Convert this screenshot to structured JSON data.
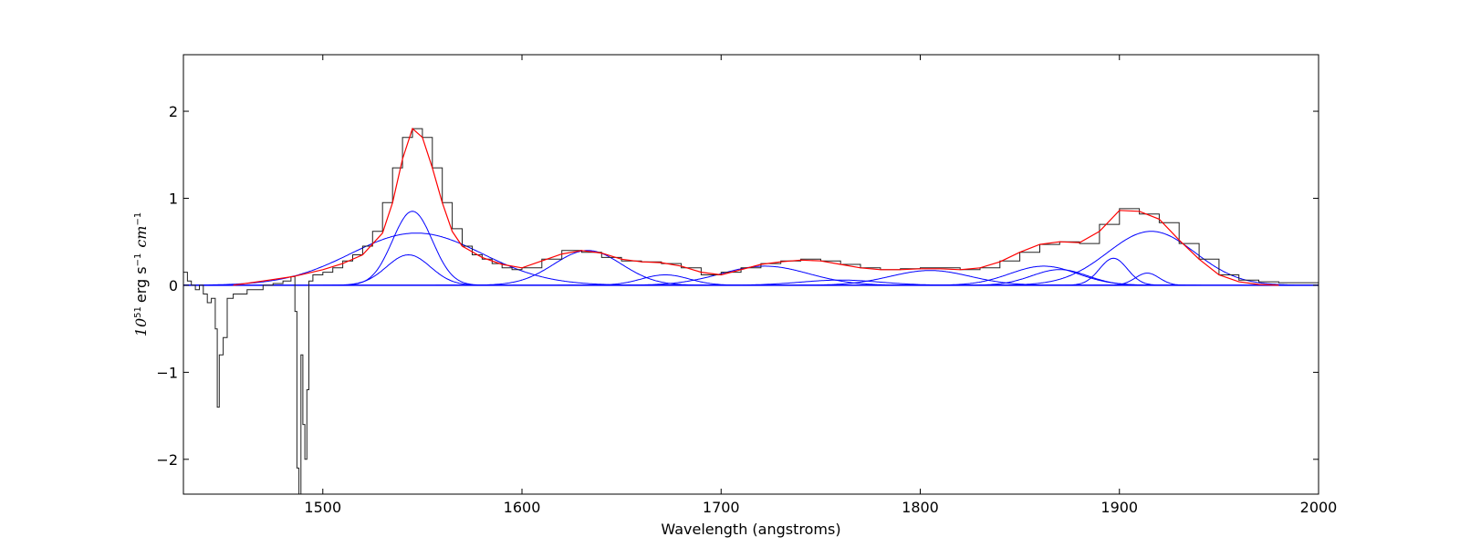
{
  "chart_data": {
    "type": "line",
    "title": "",
    "xlabel": "Wavelength (angstroms)",
    "ylabel": {
      "power": "10",
      "power_exp": "51",
      "unit": "erg s",
      "unit_exp": "−1",
      "math": "cm",
      "math_exp": "−1"
    },
    "xlim": [
      1430,
      2000
    ],
    "ylim": [
      -2.4,
      2.65
    ],
    "xticks": [
      {
        "value": 1500,
        "label": "1500"
      },
      {
        "value": 1600,
        "label": "1600"
      },
      {
        "value": 1700,
        "label": "1700"
      },
      {
        "value": 1800,
        "label": "1800"
      },
      {
        "value": 1900,
        "label": "1900"
      },
      {
        "value": 2000,
        "label": "2000"
      }
    ],
    "yticks": [
      {
        "value": 2,
        "label": "2"
      },
      {
        "value": 1,
        "label": "1"
      },
      {
        "value": 0,
        "label": "0"
      },
      {
        "value": -1,
        "label": "−1"
      },
      {
        "value": -2,
        "label": "−2"
      }
    ],
    "grid": false,
    "legend": "none",
    "colors": {
      "spectrum": "#222222",
      "total_fit": "#ff0000",
      "components": "#0000ff"
    },
    "series": [
      {
        "role": "observed-spectrum",
        "color": "#222222",
        "x": [
          1430,
          1432,
          1434,
          1436,
          1438,
          1440,
          1442,
          1444,
          1446,
          1447,
          1448,
          1450,
          1452,
          1455,
          1458,
          1462,
          1466,
          1470,
          1475,
          1480,
          1484,
          1486,
          1487,
          1488,
          1489,
          1490,
          1491,
          1492,
          1493,
          1495,
          1500,
          1505,
          1510,
          1515,
          1520,
          1525,
          1530,
          1535,
          1540,
          1545,
          1550,
          1555,
          1560,
          1565,
          1570,
          1575,
          1580,
          1585,
          1590,
          1595,
          1600,
          1610,
          1620,
          1630,
          1640,
          1650,
          1660,
          1670,
          1680,
          1690,
          1700,
          1710,
          1720,
          1730,
          1740,
          1750,
          1760,
          1770,
          1780,
          1790,
          1800,
          1810,
          1820,
          1830,
          1840,
          1850,
          1860,
          1870,
          1880,
          1890,
          1900,
          1910,
          1920,
          1930,
          1940,
          1950,
          1960,
          1970,
          1980,
          1990,
          2000
        ],
        "y": [
          0.15,
          0.05,
          0.0,
          -0.05,
          0.0,
          -0.1,
          -0.2,
          -0.15,
          -0.5,
          -1.4,
          -0.8,
          -0.6,
          -0.15,
          -0.1,
          -0.1,
          -0.05,
          -0.05,
          0.0,
          0.02,
          0.05,
          0.1,
          -0.3,
          -2.1,
          -2.4,
          -0.8,
          -1.6,
          -2.0,
          -1.2,
          0.05,
          0.12,
          0.15,
          0.2,
          0.28,
          0.35,
          0.45,
          0.62,
          0.95,
          1.35,
          1.7,
          1.8,
          1.7,
          1.35,
          0.95,
          0.65,
          0.45,
          0.35,
          0.3,
          0.25,
          0.2,
          0.18,
          0.2,
          0.3,
          0.4,
          0.38,
          0.32,
          0.28,
          0.27,
          0.25,
          0.2,
          0.12,
          0.15,
          0.2,
          0.25,
          0.28,
          0.3,
          0.28,
          0.24,
          0.2,
          0.18,
          0.19,
          0.2,
          0.2,
          0.18,
          0.2,
          0.28,
          0.38,
          0.47,
          0.5,
          0.48,
          0.7,
          0.88,
          0.82,
          0.72,
          0.48,
          0.3,
          0.12,
          0.06,
          0.04,
          0.03,
          0.03,
          0.05
        ]
      },
      {
        "role": "total-fit",
        "color": "#ff0000",
        "x": [
          1455,
          1470,
          1485,
          1500,
          1510,
          1520,
          1530,
          1535,
          1540,
          1545,
          1550,
          1555,
          1560,
          1565,
          1570,
          1580,
          1590,
          1600,
          1610,
          1620,
          1630,
          1640,
          1650,
          1660,
          1670,
          1680,
          1690,
          1700,
          1710,
          1720,
          1730,
          1740,
          1750,
          1760,
          1770,
          1780,
          1790,
          1800,
          1810,
          1820,
          1830,
          1840,
          1850,
          1860,
          1870,
          1880,
          1890,
          1900,
          1910,
          1920,
          1930,
          1940,
          1950,
          1960,
          1970,
          1980
        ],
        "y": [
          0.0,
          0.05,
          0.1,
          0.18,
          0.25,
          0.35,
          0.6,
          0.95,
          1.45,
          1.8,
          1.7,
          1.35,
          0.95,
          0.62,
          0.45,
          0.32,
          0.24,
          0.2,
          0.28,
          0.36,
          0.4,
          0.37,
          0.3,
          0.27,
          0.26,
          0.22,
          0.15,
          0.12,
          0.18,
          0.24,
          0.27,
          0.29,
          0.28,
          0.24,
          0.2,
          0.18,
          0.18,
          0.19,
          0.19,
          0.18,
          0.2,
          0.27,
          0.38,
          0.47,
          0.5,
          0.49,
          0.62,
          0.86,
          0.85,
          0.76,
          0.52,
          0.3,
          0.12,
          0.04,
          0.01,
          0.0
        ]
      }
    ],
    "components": [
      {
        "center": 1545,
        "amplitude": 0.85,
        "sigma": 10
      },
      {
        "center": 1543,
        "amplitude": 0.35,
        "sigma": 11
      },
      {
        "center": 1547,
        "amplitude": 0.6,
        "sigma": 33
      },
      {
        "center": 1633,
        "amplitude": 0.4,
        "sigma": 17
      },
      {
        "center": 1672,
        "amplitude": 0.12,
        "sigma": 12
      },
      {
        "center": 1722,
        "amplitude": 0.22,
        "sigma": 22
      },
      {
        "center": 1760,
        "amplitude": 0.06,
        "sigma": 20
      },
      {
        "center": 1805,
        "amplitude": 0.17,
        "sigma": 20
      },
      {
        "center": 1862,
        "amplitude": 0.22,
        "sigma": 17
      },
      {
        "center": 1870,
        "amplitude": 0.18,
        "sigma": 14
      },
      {
        "center": 1897,
        "amplitude": 0.31,
        "sigma": 7
      },
      {
        "center": 1914,
        "amplitude": 0.14,
        "sigma": 6
      },
      {
        "center": 1916,
        "amplitude": 0.62,
        "sigma": 22
      }
    ],
    "baseline": {
      "y": 0,
      "x_from": 1430,
      "x_to": 2000,
      "color": "#0000ff"
    }
  }
}
